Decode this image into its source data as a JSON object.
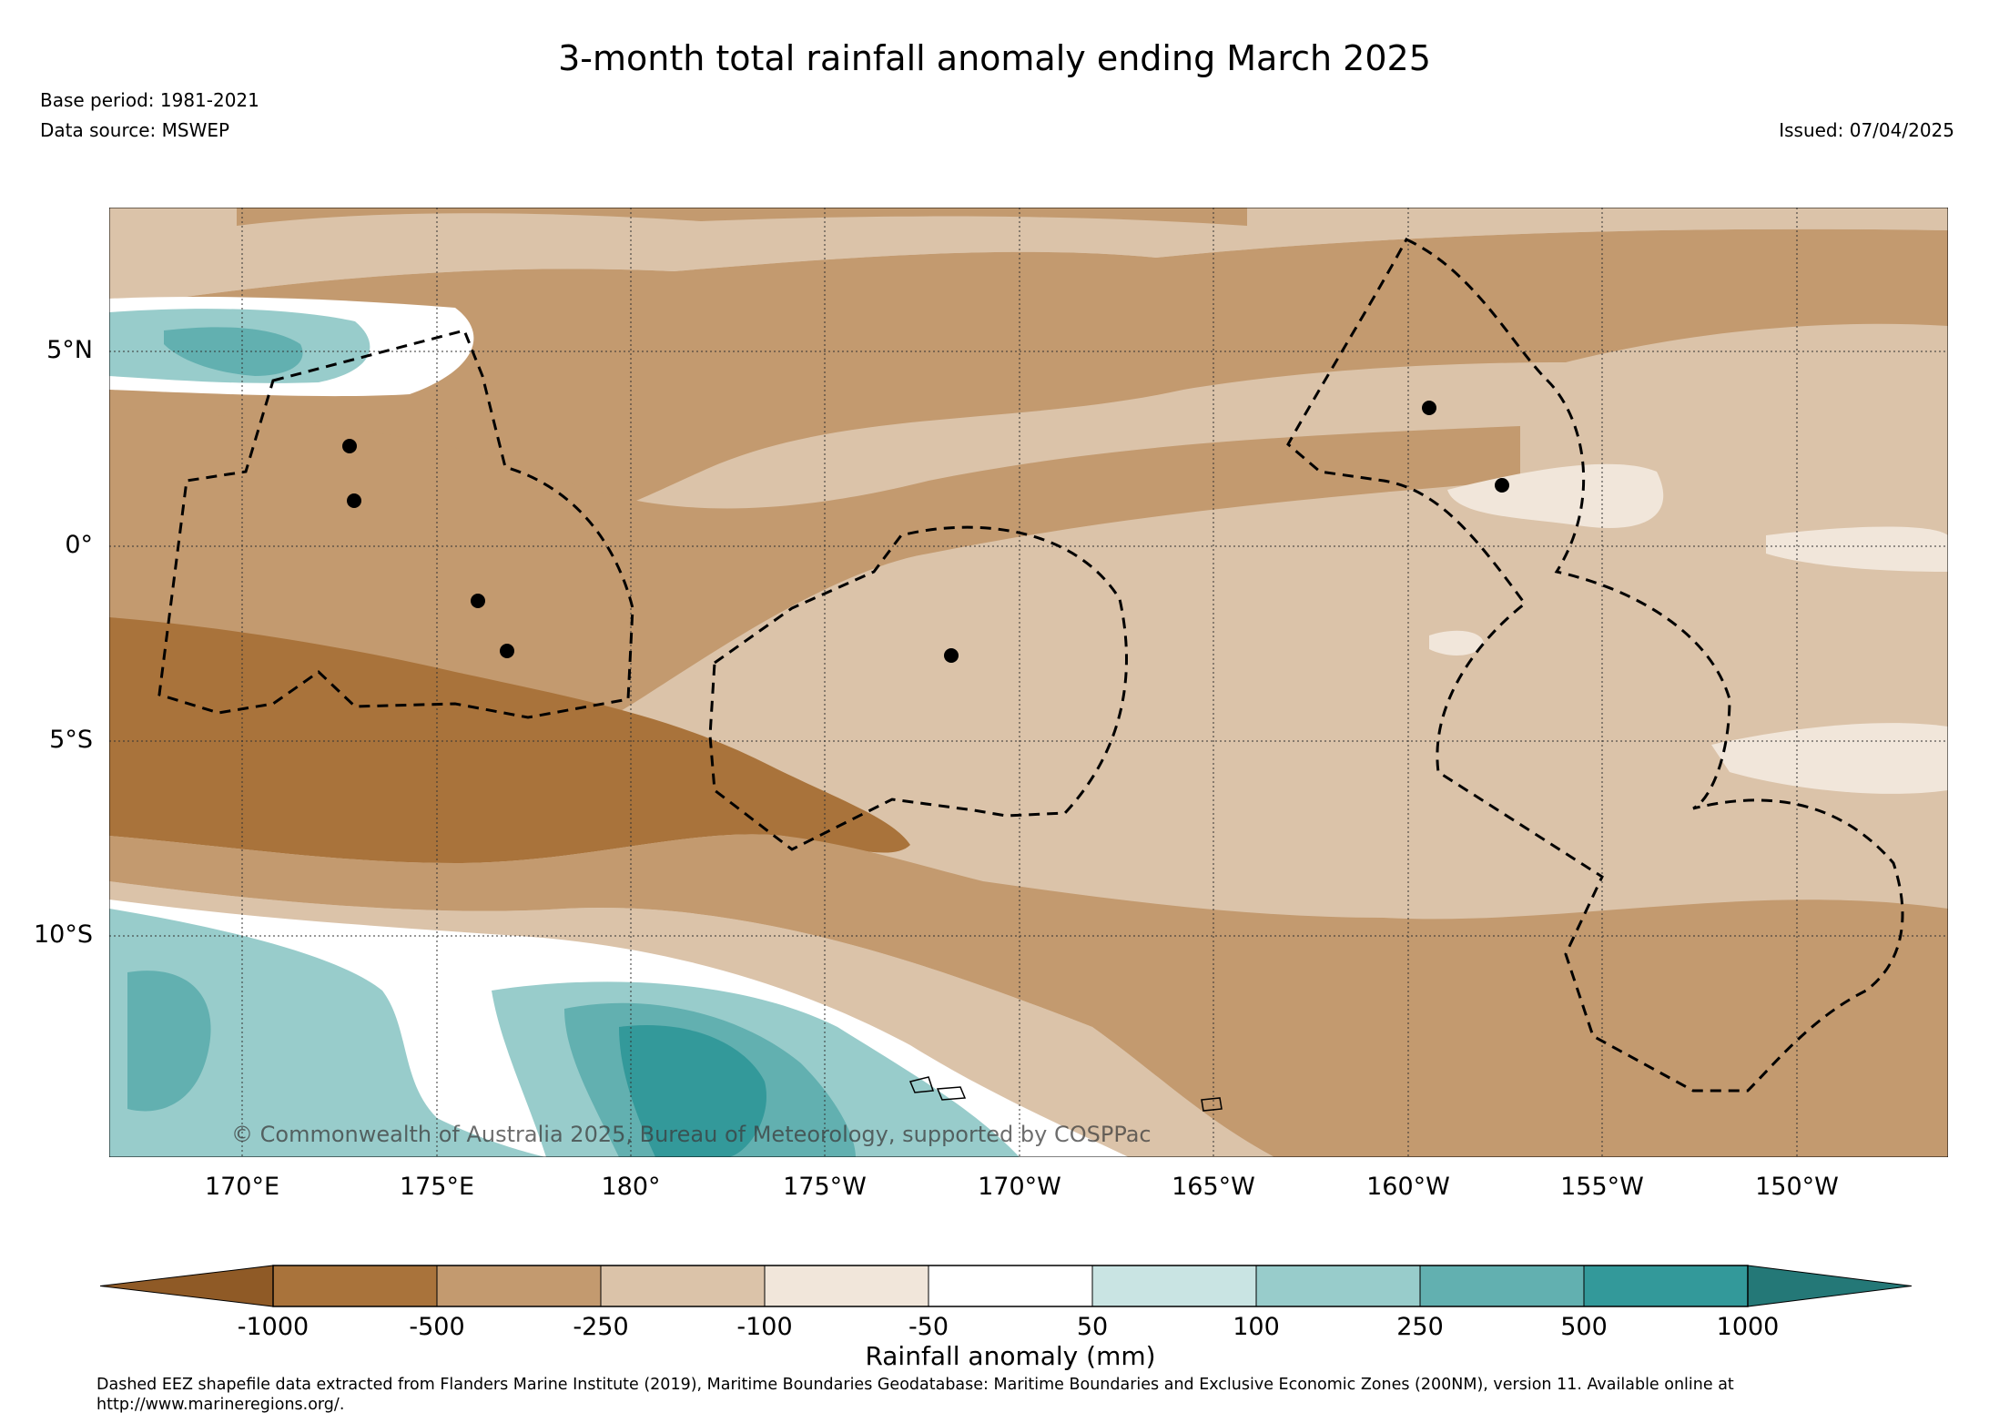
{
  "header": {
    "title": "3-month total rainfall anomaly ending March 2025",
    "base_period": "Base period: 1981-2021",
    "data_source": "Data source: MSWEP",
    "issued": "Issued: 07/04/2025"
  },
  "map": {
    "lat_ticks": [
      "5°N",
      "0°",
      "5°S",
      "10°S"
    ],
    "lon_ticks": [
      "170°E",
      "175°E",
      "180°",
      "175°W",
      "170°W",
      "165°W",
      "160°W",
      "155°W",
      "150°W"
    ],
    "copyright": "© Commonwealth of Australia 2025, Bureau of Meteorology, supported by COSPPac",
    "colors": {
      "lt_-1000": "#8f5a26",
      "-1000_-500": "#a9733b",
      "-500_-250": "#c39a6f",
      "-250_-100": "#dbc3a9",
      "-100_-50": "#f1e6da",
      "-50_50": "#ffffff",
      "50_100": "#c9e4e3",
      "100_250": "#98cccb",
      "250_500": "#62b0b0",
      "500_1000": "#33999a",
      "gt_1000": "#247877"
    }
  },
  "colorbar": {
    "labels": [
      "-1000",
      "-500",
      "-250",
      "-100",
      "-50",
      "50",
      "100",
      "250",
      "500",
      "1000"
    ],
    "title": "Rainfall anomaly (mm)"
  },
  "footnote": "Dashed EEZ shapefile data extracted from Flanders Marine Institute (2019), Maritime Boundaries Geodatabase: Maritime Boundaries and Exclusive Economic Zones (200NM), version 11. Available online at http://www.marineregions.org/."
}
